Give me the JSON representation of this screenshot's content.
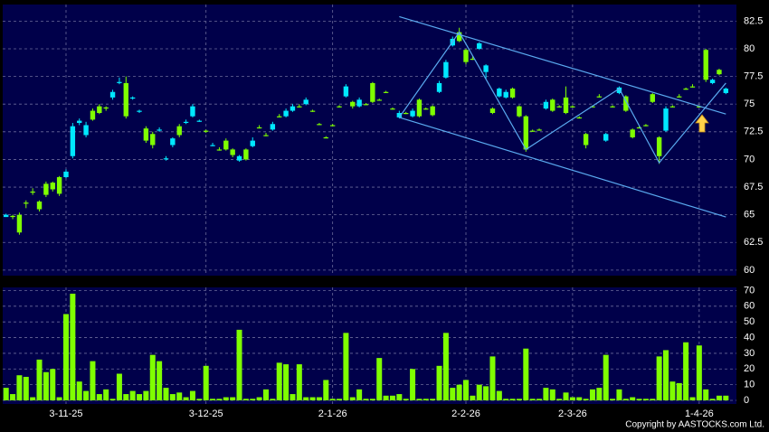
{
  "chart_data": {
    "type": "candlestick",
    "categories": [
      null,
      null,
      null,
      null,
      null,
      null,
      null,
      null,
      null,
      "3-11-25",
      null,
      null,
      null,
      null,
      null,
      null,
      null,
      null,
      null,
      null,
      null,
      null,
      null,
      null,
      null,
      null,
      null,
      null,
      null,
      null,
      "3-12-25",
      null,
      null,
      null,
      null,
      null,
      null,
      null,
      null,
      null,
      null,
      null,
      null,
      null,
      null,
      null,
      null,
      null,
      null,
      "2-1-26",
      null,
      null,
      null,
      null,
      null,
      null,
      null,
      null,
      null,
      null,
      null,
      null,
      null,
      null,
      null,
      null,
      null,
      null,
      null,
      "2-2-26",
      null,
      null,
      null,
      null,
      null,
      null,
      null,
      null,
      null,
      null,
      null,
      null,
      null,
      null,
      null,
      "2-3-26",
      null,
      null,
      null,
      null,
      null,
      null,
      null,
      null,
      null,
      null,
      null,
      null,
      null,
      null,
      null,
      null,
      null,
      null,
      "1-4-26",
      null,
      null,
      null,
      null
    ],
    "open": [
      65.0,
      64.8,
      63.4,
      66.0,
      67.0,
      65.5,
      66.8,
      67.3,
      66.9,
      68.9,
      73.0,
      73.5,
      73.1,
      73.6,
      74.2,
      74.6,
      76.1,
      77.0,
      73.9,
      75.6,
      74.4,
      71.7,
      71.3,
      72.7,
      70.1,
      71.9,
      72.2,
      73.4,
      74.8,
      73.5,
      72.5,
      71.3,
      70.9,
      70.9,
      70.4,
      70.3,
      70.0,
      71.7,
      72.9,
      72.2,
      73.2,
      73.9,
      74.4,
      74.8,
      74.8,
      75.4,
      74.4,
      73.2,
      72.0,
      73.1,
      74.8,
      76.6,
      74.8,
      75.4,
      75.0,
      75.2,
      75.4,
      76.1,
      74.6,
      74.2,
      74.2,
      74.4,
      73.9,
      74.6,
      74.0,
      76.9,
      78.8,
      80.9,
      80.7,
      78.8,
      79.1,
      80.5,
      78.5,
      74.2,
      76.4,
      76.1,
      75.6,
      73.9,
      70.9,
      72.6,
      72.7,
      75.2,
      74.4,
      74.8,
      74.2,
      74.8,
      73.8,
      71.3,
      74.8,
      75.7,
      72.3,
      74.8,
      76.5,
      74.4,
      72.0,
      72.9,
      73.1,
      75.2,
      70.3,
      74.6,
      74.8,
      75.7,
      76.4,
      76.6,
      74.8,
      77.2,
      77.2,
      77.7,
      76.4
    ],
    "high": [
      65.1,
      65.0,
      65.2,
      66.3,
      67.4,
      66.3,
      68.0,
      68.0,
      68.5,
      69.1,
      73.3,
      73.7,
      73.4,
      74.6,
      75.0,
      74.8,
      76.3,
      77.4,
      77.5,
      75.7,
      74.5,
      73.0,
      72.5,
      72.9,
      70.3,
      72.0,
      73.2,
      73.6,
      75.0,
      73.6,
      72.7,
      71.5,
      71.1,
      71.9,
      71.0,
      70.4,
      71.0,
      72.0,
      73.1,
      72.4,
      73.4,
      74.1,
      74.6,
      75.0,
      75.0,
      75.6,
      74.5,
      73.3,
      72.1,
      73.2,
      74.9,
      76.8,
      75.3,
      75.6,
      75.1,
      77.0,
      75.5,
      76.2,
      74.7,
      74.4,
      74.3,
      74.6,
      75.5,
      74.7,
      74.9,
      77.1,
      79.0,
      81.1,
      81.9,
      80.0,
      79.3,
      80.6,
      78.6,
      74.7,
      76.5,
      76.3,
      76.5,
      74.9,
      74.0,
      72.7,
      72.8,
      75.4,
      75.5,
      74.9,
      76.6,
      74.9,
      73.9,
      72.4,
      74.9,
      75.9,
      72.4,
      74.9,
      76.6,
      75.8,
      72.8,
      73.0,
      73.2,
      76.0,
      72.1,
      74.8,
      74.9,
      75.9,
      76.5,
      76.8,
      74.9,
      80.0,
      77.3,
      78.2,
      76.5
    ],
    "low": [
      64.8,
      64.6,
      63.2,
      65.6,
      66.8,
      65.3,
      66.6,
      67.1,
      66.7,
      68.3,
      70.1,
      73.1,
      72.0,
      73.5,
      74.1,
      74.4,
      75.4,
      76.8,
      73.7,
      75.4,
      74.2,
      71.5,
      71.0,
      72.5,
      69.9,
      71.1,
      72.0,
      73.2,
      73.8,
      73.4,
      72.4,
      71.2,
      70.8,
      70.8,
      70.2,
      69.8,
      69.9,
      71.1,
      72.8,
      72.1,
      72.6,
      73.8,
      73.8,
      74.3,
      74.7,
      74.9,
      74.3,
      73.1,
      71.9,
      73.0,
      74.7,
      75.6,
      74.6,
      74.7,
      74.9,
      75.1,
      75.3,
      76.0,
      74.5,
      73.7,
      74.1,
      73.8,
      73.8,
      74.5,
      73.9,
      76.0,
      77.3,
      80.2,
      80.6,
      78.6,
      79.0,
      79.9,
      77.3,
      74.1,
      75.6,
      75.5,
      75.5,
      73.8,
      70.7,
      72.5,
      72.6,
      74.5,
      74.3,
      74.7,
      74.1,
      74.7,
      73.7,
      71.0,
      74.7,
      75.6,
      71.6,
      74.7,
      75.9,
      74.3,
      71.9,
      72.8,
      73.0,
      75.1,
      69.6,
      72.5,
      74.7,
      75.6,
      76.3,
      76.5,
      74.7,
      77.0,
      76.8,
      77.6,
      75.9
    ],
    "close": [
      64.8,
      64.9,
      65.0,
      66.1,
      67.1,
      66.2,
      67.8,
      67.9,
      68.4,
      68.4,
      70.3,
      73.3,
      72.2,
      74.4,
      74.8,
      74.7,
      75.6,
      76.9,
      76.9,
      75.5,
      74.3,
      72.8,
      72.3,
      72.6,
      70.0,
      71.3,
      73.0,
      73.3,
      73.9,
      73.4,
      72.6,
      71.2,
      70.9,
      71.7,
      70.9,
      69.9,
      70.9,
      71.2,
      72.9,
      72.2,
      72.7,
      73.9,
      73.9,
      74.4,
      74.8,
      75.0,
      74.4,
      73.2,
      72.0,
      73.1,
      74.8,
      75.7,
      75.2,
      74.8,
      75.0,
      76.9,
      75.4,
      76.1,
      74.6,
      73.8,
      74.2,
      73.9,
      75.4,
      74.6,
      74.8,
      76.1,
      77.4,
      80.3,
      81.5,
      79.9,
      79.1,
      80.0,
      77.9,
      74.6,
      75.7,
      75.6,
      76.4,
      74.8,
      73.9,
      72.6,
      72.7,
      74.6,
      75.4,
      74.8,
      75.6,
      74.8,
      73.8,
      72.3,
      74.8,
      75.7,
      71.7,
      74.8,
      76.0,
      75.7,
      72.7,
      72.9,
      73.1,
      75.9,
      72.0,
      72.6,
      74.8,
      75.7,
      76.4,
      76.6,
      74.8,
      79.9,
      76.9,
      78.1,
      76.0
    ],
    "up_color": "#7fff00",
    "down_color": "#00e8ff",
    "ylim": [
      59.5,
      84
    ],
    "yticks": [
      60,
      62.5,
      65,
      67.5,
      70,
      72.5,
      75,
      77.5,
      80,
      82.5
    ],
    "grid": true,
    "overlays": [
      {
        "color": "#5aaaf0",
        "x": [
          59,
          108
        ],
        "y": [
          82.9,
          74.1
        ]
      },
      {
        "color": "#5aaaf0",
        "x": [
          59,
          108
        ],
        "y": [
          73.8,
          64.8
        ]
      },
      {
        "color": "#5aaaf0",
        "x": [
          59,
          68,
          78,
          92,
          98,
          108
        ],
        "y": [
          73.8,
          81.5,
          70.9,
          76.4,
          69.7,
          76.9
        ]
      }
    ],
    "volume": {
      "type": "bar",
      "color": "#7fff00",
      "values": [
        8,
        4,
        16,
        15,
        2,
        26,
        18,
        20,
        2,
        55,
        68,
        12,
        6,
        25,
        4,
        7,
        1,
        17,
        4,
        6,
        4,
        6,
        29,
        25,
        8,
        4,
        5,
        2,
        6,
        1,
        22,
        1,
        1,
        2,
        2,
        45,
        1,
        1,
        2,
        7,
        1,
        24,
        23,
        4,
        23,
        2,
        2,
        2,
        13,
        1,
        1,
        43,
        2,
        7,
        1,
        1,
        27,
        3,
        3,
        4,
        1,
        20,
        1,
        1,
        1,
        22,
        43,
        8,
        10,
        13,
        3,
        10,
        9,
        28,
        6,
        1,
        1,
        1,
        33,
        1,
        1,
        8,
        7,
        1,
        5,
        2,
        2,
        1,
        7,
        8,
        29,
        1,
        7,
        1,
        2,
        1,
        1,
        1,
        28,
        32,
        12,
        11,
        37,
        2,
        35,
        7,
        1,
        3,
        3
      ],
      "ylim": [
        -2.3,
        72
      ],
      "yticks": [
        0,
        10,
        20,
        30,
        40,
        50,
        60,
        70
      ]
    },
    "copyright": "Copyright by AASTOCKS.com Ltd."
  }
}
